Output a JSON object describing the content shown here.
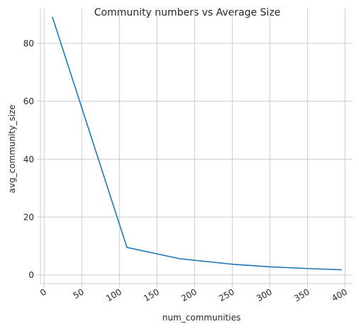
{
  "chart_data": {
    "type": "line",
    "title": "Community numbers vs Average Size",
    "xlabel": "num_communities",
    "ylabel": "avg_community_size",
    "xlim": [
      -5,
      410
    ],
    "ylim": [
      -3,
      92
    ],
    "x_ticks": [
      0,
      50,
      100,
      150,
      200,
      250,
      300,
      350,
      400
    ],
    "x_tick_labels": [
      "0",
      "50",
      "100",
      "150",
      "200",
      "250",
      "300",
      "350",
      "400"
    ],
    "y_ticks": [
      0,
      20,
      40,
      60,
      80
    ],
    "y_tick_labels": [
      "0",
      "20",
      "40",
      "60",
      "80"
    ],
    "grid": true,
    "series": [
      {
        "color": "#1f77b4",
        "x": [
          11,
          110,
          180,
          250,
          300,
          350,
          395
        ],
        "y": [
          89,
          9.5,
          5.6,
          3.7,
          2.8,
          2.2,
          1.8
        ]
      }
    ]
  }
}
